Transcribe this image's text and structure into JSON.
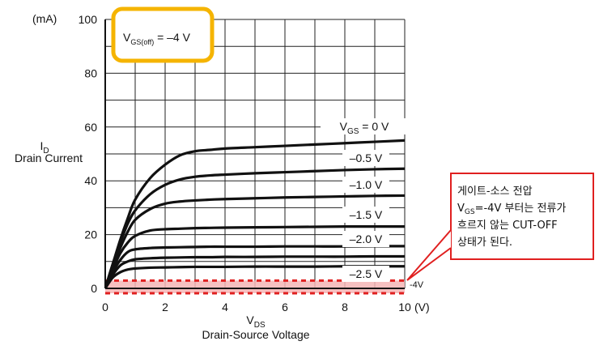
{
  "chart_data": {
    "type": "line",
    "title": "",
    "xlabel": {
      "main": "V",
      "sub": "DS",
      "line2": "Drain-Source Voltage"
    },
    "ylabel": {
      "main": "I",
      "sub": "D",
      "line2": "Drain Current"
    },
    "y_unit": "(mA)",
    "x_unit": "(V)",
    "xlim": [
      0,
      10
    ],
    "ylim": [
      0,
      100
    ],
    "grid": true,
    "x_ticks": [
      "0",
      "2",
      "4",
      "6",
      "8",
      "10"
    ],
    "y_ticks": [
      "0",
      "20",
      "40",
      "60",
      "80",
      "100"
    ],
    "x": [
      0,
      0.25,
      0.5,
      0.75,
      1,
      1.5,
      2,
      2.5,
      3,
      3.5,
      4,
      5,
      6,
      7,
      8,
      9,
      10
    ],
    "series": [
      {
        "name": "V_GS = 0 V",
        "values": [
          0,
          9,
          18,
          26,
          33,
          41,
          46,
          49.5,
          51,
          51.5,
          52,
          52.5,
          53,
          53.5,
          54,
          54.5,
          55
        ]
      },
      {
        "name": "-0.5 V",
        "values": [
          0,
          9,
          17,
          24,
          29,
          35,
          38.5,
          40.5,
          41.5,
          42,
          42.3,
          42.8,
          43.2,
          43.6,
          44,
          44.3,
          44.5
        ]
      },
      {
        "name": "-1.0 V",
        "values": [
          0,
          8,
          15,
          21,
          25.5,
          29.5,
          31.5,
          32.3,
          32.7,
          33,
          33.2,
          33.5,
          33.8,
          34,
          34.2,
          34.4,
          34.5
        ]
      },
      {
        "name": "-1.5 V",
        "values": [
          0,
          7,
          13,
          17,
          19.5,
          21.5,
          22,
          22.2,
          22.4,
          22.5,
          22.6,
          22.7,
          22.8,
          22.9,
          23,
          23,
          23
        ]
      },
      {
        "name": "-2.0 V",
        "values": [
          0,
          6,
          10.5,
          13.5,
          14.5,
          15,
          15.2,
          15.3,
          15.4,
          15.5,
          15.5,
          15.5,
          15.6,
          15.6,
          15.6,
          15.7,
          15.7
        ]
      },
      {
        "name": "",
        "values": [
          0,
          5,
          8.5,
          10,
          10.8,
          11.2,
          11.4,
          11.5,
          11.6,
          11.6,
          11.7,
          11.7,
          11.8,
          11.8,
          11.8,
          11.9,
          11.9
        ]
      },
      {
        "name": "-2.5 V",
        "values": [
          0,
          4,
          6,
          7,
          7.4,
          7.7,
          7.8,
          7.9,
          8,
          8,
          8,
          8.1,
          8.1,
          8.1,
          8.2,
          8.2,
          8.2
        ]
      }
    ],
    "curve_labels": [
      {
        "text": "V",
        "sub": "GS",
        "rest": " = 0 V"
      },
      {
        "text": "–0.5 V"
      },
      {
        "text": "–1.0 V"
      },
      {
        "text": "–1.5 V"
      },
      {
        "text": "–2.0 V"
      },
      {
        "text": "–2.5 V"
      }
    ],
    "cutoff_box": {
      "label_main": "V",
      "label_sub": "GS(off)",
      "label_rest": " = –4 V",
      "color": "#f5b400"
    },
    "cutoff_region": {
      "label": "-4V",
      "color": "#e02020",
      "fill": "#f5b5b5",
      "ymax": 2
    }
  },
  "annotation": {
    "lines": [
      "게이트-소스 전압",
      "V_GS=-4V 부터는 전류가",
      "흐르지 않는 CUT-OFF",
      "상태가 된다."
    ],
    "line2_parts": {
      "main": "V",
      "sub": "GS",
      "rest": "=-4V 부터는 전류가"
    },
    "border_color": "#e02020"
  }
}
